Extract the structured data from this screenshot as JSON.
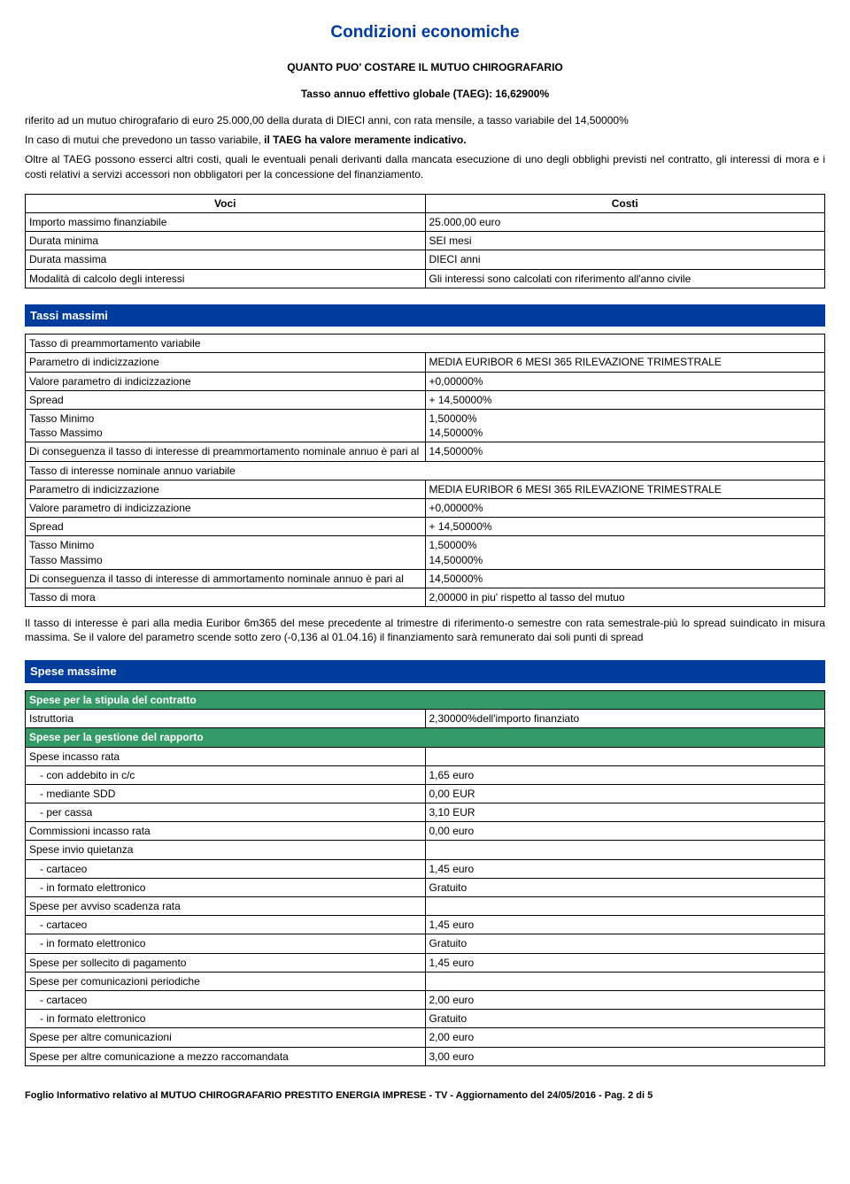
{
  "title": "Condizioni economiche",
  "subheading": "QUANTO PUO' COSTARE IL MUTUO CHIROGRAFARIO",
  "taeg_line": "Tasso annuo effettivo globale (TAEG): 16,62900%",
  "intro": {
    "p1": "riferito ad un mutuo chirografario di euro 25.000,00 della durata di DIECI anni, con rata mensile, a tasso variabile del 14,50000%",
    "p2": "In caso di mutui che prevedono un tasso variabile, il TAEG ha valore meramente indicativo.",
    "p3": "Oltre al TAEG possono esserci altri costi, quali le eventuali penali derivanti dalla mancata esecuzione di uno degli obblighi previsti nel contratto, gli interessi di mora e i costi relativi a servizi accessori non obbligatori per la concessione del finanziamento."
  },
  "voci_table": {
    "headers": [
      "Voci",
      "Costi"
    ],
    "rows": [
      [
        "Importo massimo finanziabile",
        "25.000,00 euro"
      ],
      [
        "Durata minima",
        "SEI mesi"
      ],
      [
        "Durata massima",
        "DIECI anni"
      ],
      [
        "Modalità di calcolo degli interessi",
        "Gli interessi sono calcolati con riferimento all'anno civile"
      ]
    ]
  },
  "tassi": {
    "section_title": "Tassi massimi",
    "rows": [
      {
        "label": "Tasso di preammortamento variabile",
        "value": "",
        "full": true
      },
      {
        "label": "Parametro di indicizzazione",
        "value": "MEDIA EURIBOR 6 MESI 365 RILEVAZIONE TRIMESTRALE"
      },
      {
        "label": "Valore parametro di indicizzazione",
        "value": "+0,00000%"
      },
      {
        "label": "Spread",
        "value": "+ 14,50000%"
      },
      {
        "label": "Tasso Minimo\nTasso Massimo",
        "value": "1,50000%\n14,50000%"
      },
      {
        "label": "Di conseguenza il tasso di interesse di preammortamento nominale annuo è pari al",
        "value": "14,50000%"
      },
      {
        "label": "Tasso di interesse nominale annuo variabile",
        "value": "",
        "full": true
      },
      {
        "label": "Parametro di indicizzazione",
        "value": "MEDIA EURIBOR 6 MESI 365 RILEVAZIONE TRIMESTRALE"
      },
      {
        "label": "Valore parametro di indicizzazione",
        "value": "+0,00000%"
      },
      {
        "label": "Spread",
        "value": "+ 14,50000%"
      },
      {
        "label": "Tasso Minimo\nTasso Massimo",
        "value": "1,50000%\n14,50000%"
      },
      {
        "label": "Di conseguenza il tasso di interesse di ammortamento nominale annuo è pari al",
        "value": "14,50000%"
      },
      {
        "label": "Tasso di mora",
        "value": "2,00000 in piu' rispetto al tasso del mutuo"
      }
    ],
    "note": "Il tasso di interesse è pari alla media Euribor 6m365 del mese precedente al trimestre di riferimento-o semestre con rata semestrale-più lo spread suindicato in misura massima. Se il valore del parametro scende sotto zero (-0,136 al 01.04.16) il finanziamento sarà remunerato dai soli punti di spread"
  },
  "spese": {
    "section_title": "Spese massime",
    "rows": [
      {
        "type": "green",
        "label": "Spese per la stipula del contratto",
        "value": ""
      },
      {
        "label": "Istruttoria",
        "value": "2,30000%dell'importo finanziato"
      },
      {
        "type": "green",
        "label": "Spese per la gestione del rapporto",
        "value": ""
      },
      {
        "label": "Spese incasso rata",
        "value": ""
      },
      {
        "label": "- con addebito in c/c",
        "value": "1,65 euro",
        "indent": true
      },
      {
        "label": "- mediante SDD",
        "value": "0,00 EUR",
        "indent": true
      },
      {
        "label": "- per cassa",
        "value": "3,10 EUR",
        "indent": true
      },
      {
        "label": "Commissioni incasso rata",
        "value": "0,00 euro"
      },
      {
        "label": "Spese invio quietanza",
        "value": ""
      },
      {
        "label": "- cartaceo",
        "value": "1,45 euro",
        "indent": true
      },
      {
        "label": "- in formato elettronico",
        "value": "Gratuito",
        "indent": true
      },
      {
        "label": "Spese per avviso scadenza rata",
        "value": ""
      },
      {
        "label": "- cartaceo",
        "value": "1,45 euro",
        "indent": true
      },
      {
        "label": "- in formato elettronico",
        "value": "Gratuito",
        "indent": true
      },
      {
        "label": "Spese per sollecito di pagamento",
        "value": "1,45 euro"
      },
      {
        "label": "Spese per comunicazioni periodiche",
        "value": ""
      },
      {
        "label": "- cartaceo",
        "value": "2,00 euro",
        "indent": true
      },
      {
        "label": "- in formato elettronico",
        "value": "Gratuito",
        "indent": true
      },
      {
        "label": "Spese per altre comunicazioni",
        "value": "2,00 euro"
      },
      {
        "label": "Spese per altre comunicazione a mezzo raccomandata",
        "value": "3,00 euro"
      }
    ]
  },
  "footer": "Foglio Informativo relativo al MUTUO CHIROGRAFARIO PRESTITO ENERGIA IMPRESE - TV - Aggiornamento del 24/05/2016 - Pag. 2 di 5"
}
